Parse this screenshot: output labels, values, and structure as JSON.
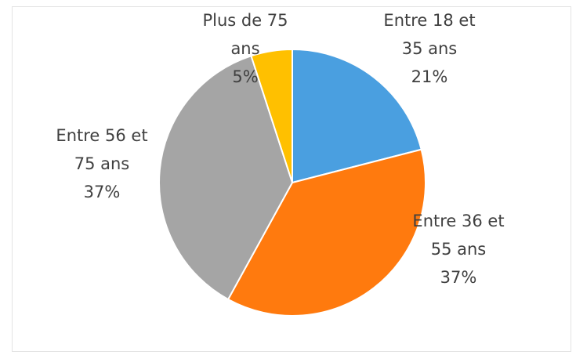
{
  "chart_data": {
    "type": "pie",
    "categories": [
      "Entre 18 et 35 ans",
      "Entre 36 et 55 ans",
      "Entre 56 et 75 ans",
      "Plus de 75 ans"
    ],
    "values": [
      21,
      37,
      37,
      5
    ],
    "value_labels": [
      "21%",
      "37%",
      "37%",
      "5%"
    ],
    "colors": [
      "#4a9fe0",
      "#ff7a0e",
      "#a5a5a5",
      "#ffc000"
    ]
  }
}
